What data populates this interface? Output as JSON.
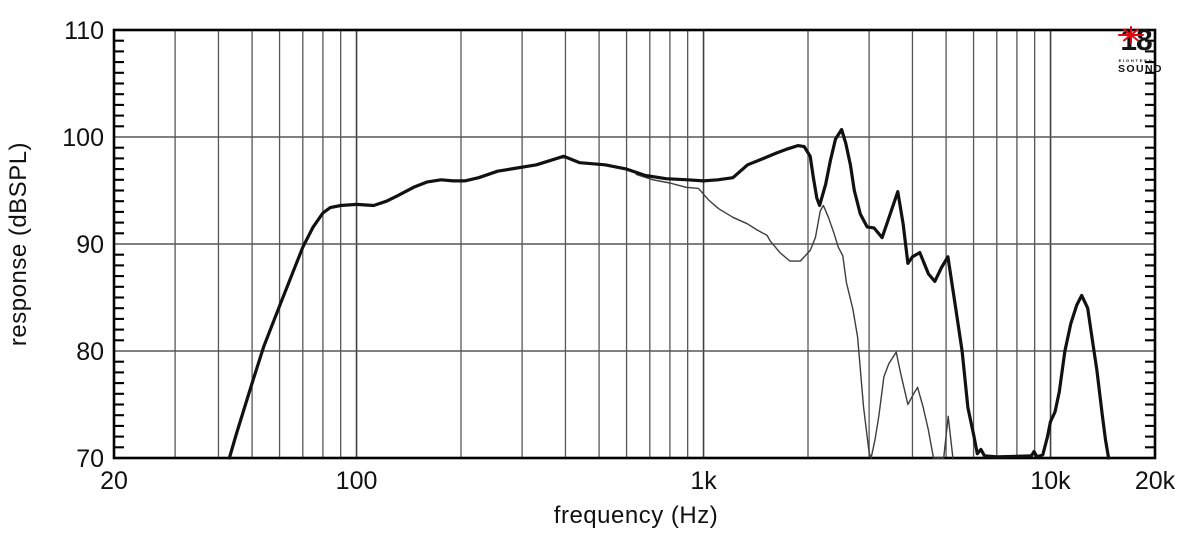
{
  "logo": {
    "number": "18",
    "line1": "EIGHTEEN",
    "line2": "SOUND",
    "star_color": "#e30613",
    "text_color": "#141414"
  },
  "chart_data": {
    "type": "line",
    "title": "",
    "xlabel": "frequency (Hz)",
    "ylabel": "response (dBSPL)",
    "x_scale": "log",
    "x_range": [
      20,
      20000
    ],
    "y_range": [
      70,
      110
    ],
    "grid": true,
    "legend": "none",
    "colors": {
      "curve": "#111111",
      "thin_curve": "#3d3d3d",
      "grid_minor": "#575757",
      "grid_major": "#3f3f3f",
      "border": "#000000",
      "label": "#111111"
    },
    "x_major_ticks": [
      {
        "f": 20,
        "label": "20"
      },
      {
        "f": 100,
        "label": "100"
      },
      {
        "f": 1000,
        "label": "1k"
      },
      {
        "f": 10000,
        "label": "10k"
      },
      {
        "f": 20000,
        "label": "20k"
      }
    ],
    "y_major_ticks": [
      {
        "v": 70,
        "label": "70"
      },
      {
        "v": 80,
        "label": "80"
      },
      {
        "v": 90,
        "label": "90"
      },
      {
        "v": 100,
        "label": "100"
      },
      {
        "v": 110,
        "label": "110"
      }
    ],
    "x_gridlines": [
      30,
      40,
      50,
      60,
      70,
      80,
      90,
      100,
      200,
      300,
      400,
      500,
      600,
      700,
      800,
      900,
      1000,
      2000,
      3000,
      4000,
      5000,
      6000,
      7000,
      8000,
      9000,
      10000
    ],
    "x_gridline_majors": [
      100,
      1000,
      10000
    ],
    "y_gridlines": [
      80,
      90,
      100
    ],
    "y_minor_tick_step_db": 1,
    "series": [
      {
        "name": "main-curve",
        "style": "thick",
        "stroke_width": 3.2,
        "points": [
          [
            43,
            70
          ],
          [
            45,
            72.2
          ],
          [
            47,
            74.2
          ],
          [
            50,
            77
          ],
          [
            54,
            80.4
          ],
          [
            58,
            83
          ],
          [
            61,
            84.8
          ],
          [
            66,
            87.6
          ],
          [
            70,
            89.7
          ],
          [
            75,
            91.6
          ],
          [
            80,
            92.9
          ],
          [
            84,
            93.4
          ],
          [
            90,
            93.6
          ],
          [
            100,
            93.7
          ],
          [
            112,
            93.6
          ],
          [
            122,
            94.0
          ],
          [
            131,
            94.5
          ],
          [
            146,
            95.3
          ],
          [
            160,
            95.8
          ],
          [
            175,
            96.0
          ],
          [
            190,
            95.9
          ],
          [
            205,
            95.9
          ],
          [
            225,
            96.2
          ],
          [
            255,
            96.8
          ],
          [
            290,
            97.1
          ],
          [
            330,
            97.4
          ],
          [
            395,
            98.2
          ],
          [
            440,
            97.6
          ],
          [
            520,
            97.4
          ],
          [
            600,
            97.0
          ],
          [
            680,
            96.4
          ],
          [
            780,
            96.1
          ],
          [
            900,
            96.0
          ],
          [
            1000,
            95.9
          ],
          [
            1100,
            96.0
          ],
          [
            1215,
            96.2
          ],
          [
            1340,
            97.4
          ],
          [
            1490,
            98.0
          ],
          [
            1620,
            98.5
          ],
          [
            1750,
            98.9
          ],
          [
            1870,
            99.2
          ],
          [
            1950,
            99.1
          ],
          [
            2030,
            98.2
          ],
          [
            2070,
            96.3
          ],
          [
            2120,
            94.3
          ],
          [
            2160,
            93.6
          ],
          [
            2250,
            95.6
          ],
          [
            2320,
            97.8
          ],
          [
            2400,
            99.8
          ],
          [
            2500,
            100.7
          ],
          [
            2570,
            99.4
          ],
          [
            2650,
            97.4
          ],
          [
            2720,
            95.0
          ],
          [
            2830,
            92.8
          ],
          [
            2960,
            91.6
          ],
          [
            3100,
            91.5
          ],
          [
            3270,
            90.6
          ],
          [
            3450,
            92.8
          ],
          [
            3630,
            94.9
          ],
          [
            3760,
            91.9
          ],
          [
            3880,
            88.2
          ],
          [
            4000,
            88.8
          ],
          [
            4200,
            89.2
          ],
          [
            4450,
            87.2
          ],
          [
            4640,
            86.5
          ],
          [
            4850,
            87.8
          ],
          [
            5060,
            88.8
          ],
          [
            5300,
            84.5
          ],
          [
            5560,
            80
          ],
          [
            5780,
            74.7
          ],
          [
            6000,
            72.2
          ],
          [
            6150,
            70.4
          ],
          [
            6300,
            70.8
          ],
          [
            6450,
            70.2
          ],
          [
            7000,
            70.1
          ],
          [
            8800,
            70.2
          ],
          [
            8960,
            70.6
          ],
          [
            9150,
            70.1
          ],
          [
            9500,
            70.3
          ],
          [
            9800,
            72.0
          ],
          [
            10000,
            73.4
          ],
          [
            10300,
            74.3
          ],
          [
            10600,
            76.2
          ],
          [
            11000,
            80
          ],
          [
            11450,
            82.6
          ],
          [
            11900,
            84.3
          ],
          [
            12300,
            85.2
          ],
          [
            12800,
            84
          ],
          [
            13200,
            81
          ],
          [
            13600,
            78.2
          ],
          [
            14100,
            74
          ],
          [
            14400,
            71.7
          ],
          [
            14700,
            70
          ]
        ]
      },
      {
        "name": "secondary-curve",
        "style": "thin",
        "stroke_width": 1.4,
        "points": [
          [
            640,
            96.5
          ],
          [
            715,
            96.0
          ],
          [
            800,
            95.7
          ],
          [
            890,
            95.3
          ],
          [
            967,
            95.2
          ],
          [
            1035,
            94.1
          ],
          [
            1105,
            93.3
          ],
          [
            1215,
            92.5
          ],
          [
            1335,
            91.9
          ],
          [
            1430,
            91.3
          ],
          [
            1525,
            90.8
          ],
          [
            1555,
            90.3
          ],
          [
            1660,
            89.2
          ],
          [
            1775,
            88.4
          ],
          [
            1900,
            88.4
          ],
          [
            2030,
            89.4
          ],
          [
            2100,
            90.6
          ],
          [
            2170,
            93.1
          ],
          [
            2215,
            93.6
          ],
          [
            2290,
            92.5
          ],
          [
            2365,
            91.2
          ],
          [
            2445,
            89.7
          ],
          [
            2520,
            88.9
          ],
          [
            2580,
            86.4
          ],
          [
            2695,
            83.9
          ],
          [
            2780,
            81.3
          ],
          [
            2890,
            74.8
          ],
          [
            3000,
            70.5
          ],
          [
            3040,
            70
          ],
          [
            3120,
            71.7
          ],
          [
            3200,
            73.9
          ],
          [
            3310,
            77.6
          ],
          [
            3420,
            78.8
          ],
          [
            3590,
            79.9
          ],
          [
            3700,
            77.9
          ],
          [
            3880,
            75.0
          ],
          [
            4030,
            76.0
          ],
          [
            4140,
            76.6
          ],
          [
            4290,
            74.8
          ],
          [
            4440,
            72.7
          ],
          [
            4600,
            70
          ],
          [
            4920,
            70
          ],
          [
            5070,
            73.9
          ],
          [
            5230,
            70
          ]
        ]
      }
    ]
  }
}
